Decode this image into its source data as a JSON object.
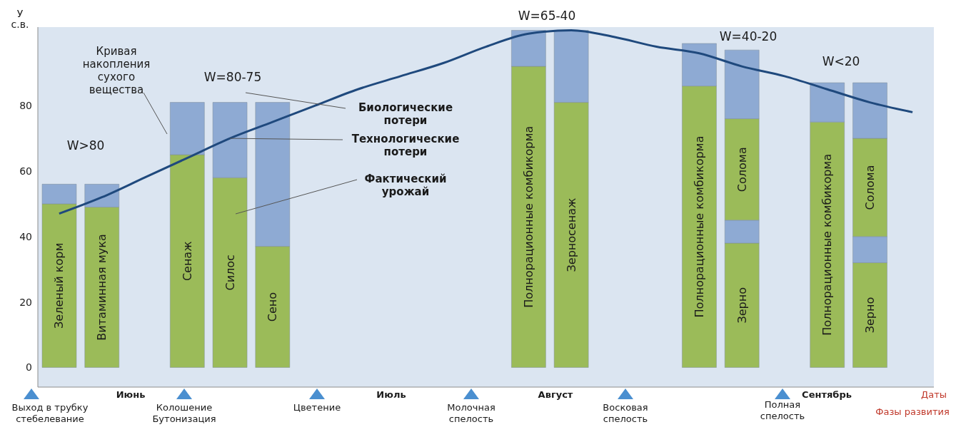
{
  "chart_data": {
    "type": "bar",
    "stacked": true,
    "ylabel": "У с.в.",
    "ylim": [
      -6,
      104
    ],
    "yticks": [
      0,
      20,
      40,
      60,
      80
    ],
    "marker": "none",
    "categories": [
      "Зеленый корм",
      "Витаминная мука",
      null,
      "Сенаж",
      "Силос",
      "Сено",
      null,
      null,
      null,
      null,
      null,
      "Полнорационные комбикорма",
      "Зерносенаж",
      null,
      null,
      "Полнорационные комбикорма",
      "Зерно",
      null,
      "Полнорационные комбикорма",
      "Зерно",
      null
    ],
    "series": [
      {
        "color": "#9bbb59",
        "values": [
          50,
          49,
          null,
          65,
          58,
          37,
          null,
          null,
          null,
          null,
          null,
          92,
          81,
          null,
          null,
          86,
          38,
          null,
          75,
          32,
          null
        ]
      },
      {
        "color": "#8eaad3",
        "values": [
          6,
          7,
          null,
          16,
          23,
          44,
          null,
          null,
          null,
          null,
          null,
          11,
          22,
          null,
          null,
          13,
          7,
          null,
          12,
          8,
          null
        ]
      },
      {
        "name": "Солома",
        "color": "#9bbb59",
        "values": [
          null,
          null,
          null,
          null,
          null,
          null,
          null,
          null,
          null,
          null,
          null,
          null,
          null,
          null,
          null,
          null,
          31,
          null,
          null,
          30,
          null
        ]
      },
      {
        "color": "#8eaad3",
        "values": [
          null,
          null,
          null,
          null,
          null,
          null,
          null,
          null,
          null,
          null,
          null,
          null,
          null,
          null,
          null,
          null,
          21,
          null,
          null,
          17,
          null
        ]
      },
      {
        "type": "line",
        "color": "#1f497d",
        "values": [
          47,
          52,
          58,
          64,
          70,
          75,
          80,
          85,
          89,
          93,
          98,
          102,
          103,
          101,
          98,
          96,
          92,
          89,
          85,
          81,
          78
        ]
      }
    ],
    "annotations": [
      "Кривая накопления сухого вещества",
      "Биологические потери",
      {
        "text": "Технологические потери",
        "x": "Силос",
        "y": 70
      },
      "Фактический урожай",
      "W>80",
      "W=80-75",
      "W=65-40",
      "W=40-20",
      "W<20",
      "Июнь",
      "Июль",
      "Август",
      "Сентябрь",
      "Даты",
      "Выход в трубку стебелевание",
      "Колошение Бутонизация",
      "Цветение",
      "Молочная спелость",
      "Восковая спелость",
      "Полная спелость",
      "Фазы развития"
    ]
  }
}
